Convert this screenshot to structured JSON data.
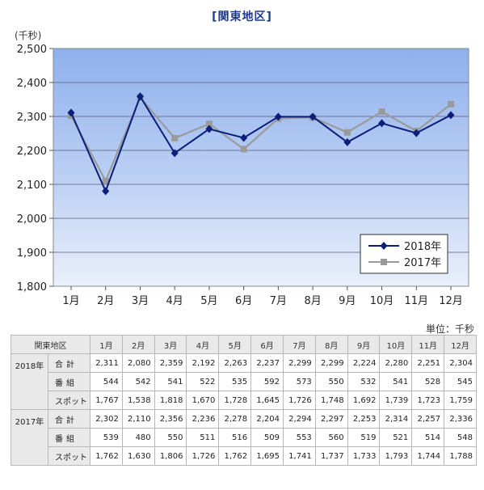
{
  "title": "[関東地区]",
  "chart_data": {
    "type": "line",
    "y_unit_label": "(千秒)",
    "categories": [
      "1月",
      "2月",
      "3月",
      "4月",
      "5月",
      "6月",
      "7月",
      "8月",
      "9月",
      "10月",
      "11月",
      "12月"
    ],
    "ylim": [
      1800,
      2500
    ],
    "y_ticks": [
      "1,800",
      "1,900",
      "2,000",
      "2,100",
      "2,200",
      "2,300",
      "2,400",
      "2,500"
    ],
    "y_tick_values": [
      1800,
      1900,
      2000,
      2100,
      2200,
      2300,
      2400,
      2500
    ],
    "grid": true,
    "legend_position": "bottom-right",
    "series": [
      {
        "name": "2018年",
        "color": "#0a1e7a",
        "marker": "diamond",
        "values": [
          2311,
          2080,
          2359,
          2192,
          2263,
          2237,
          2299,
          2299,
          2224,
          2280,
          2251,
          2304
        ]
      },
      {
        "name": "2017年",
        "color": "#9a9a9a",
        "marker": "square",
        "values": [
          2302,
          2110,
          2356,
          2236,
          2278,
          2204,
          2294,
          2297,
          2253,
          2314,
          2257,
          2336
        ]
      }
    ]
  },
  "table": {
    "unit_note": "単位：千秒",
    "corner_label": "関東地区",
    "months": [
      "1月",
      "2月",
      "3月",
      "4月",
      "5月",
      "6月",
      "7月",
      "8月",
      "9月",
      "10月",
      "11月",
      "12月"
    ],
    "groups": [
      {
        "year": "2018年",
        "rows": [
          {
            "label": "合計",
            "values": [
              "2,311",
              "2,080",
              "2,359",
              "2,192",
              "2,263",
              "2,237",
              "2,299",
              "2,299",
              "2,224",
              "2,280",
              "2,251",
              "2,304"
            ]
          },
          {
            "label": "番組",
            "values": [
              "544",
              "542",
              "541",
              "522",
              "535",
              "592",
              "573",
              "550",
              "532",
              "541",
              "528",
              "545"
            ]
          },
          {
            "label": "スポット",
            "values": [
              "1,767",
              "1,538",
              "1,818",
              "1,670",
              "1,728",
              "1,645",
              "1,726",
              "1,748",
              "1,692",
              "1,739",
              "1,723",
              "1,759"
            ]
          }
        ]
      },
      {
        "year": "2017年",
        "rows": [
          {
            "label": "合計",
            "values": [
              "2,302",
              "2,110",
              "2,356",
              "2,236",
              "2,278",
              "2,204",
              "2,294",
              "2,297",
              "2,253",
              "2,314",
              "2,257",
              "2,336"
            ]
          },
          {
            "label": "番組",
            "values": [
              "539",
              "480",
              "550",
              "511",
              "516",
              "509",
              "553",
              "560",
              "519",
              "521",
              "514",
              "548"
            ]
          },
          {
            "label": "スポット",
            "values": [
              "1,762",
              "1,630",
              "1,806",
              "1,726",
              "1,762",
              "1,695",
              "1,741",
              "1,737",
              "1,733",
              "1,793",
              "1,744",
              "1,788"
            ]
          }
        ]
      }
    ]
  }
}
